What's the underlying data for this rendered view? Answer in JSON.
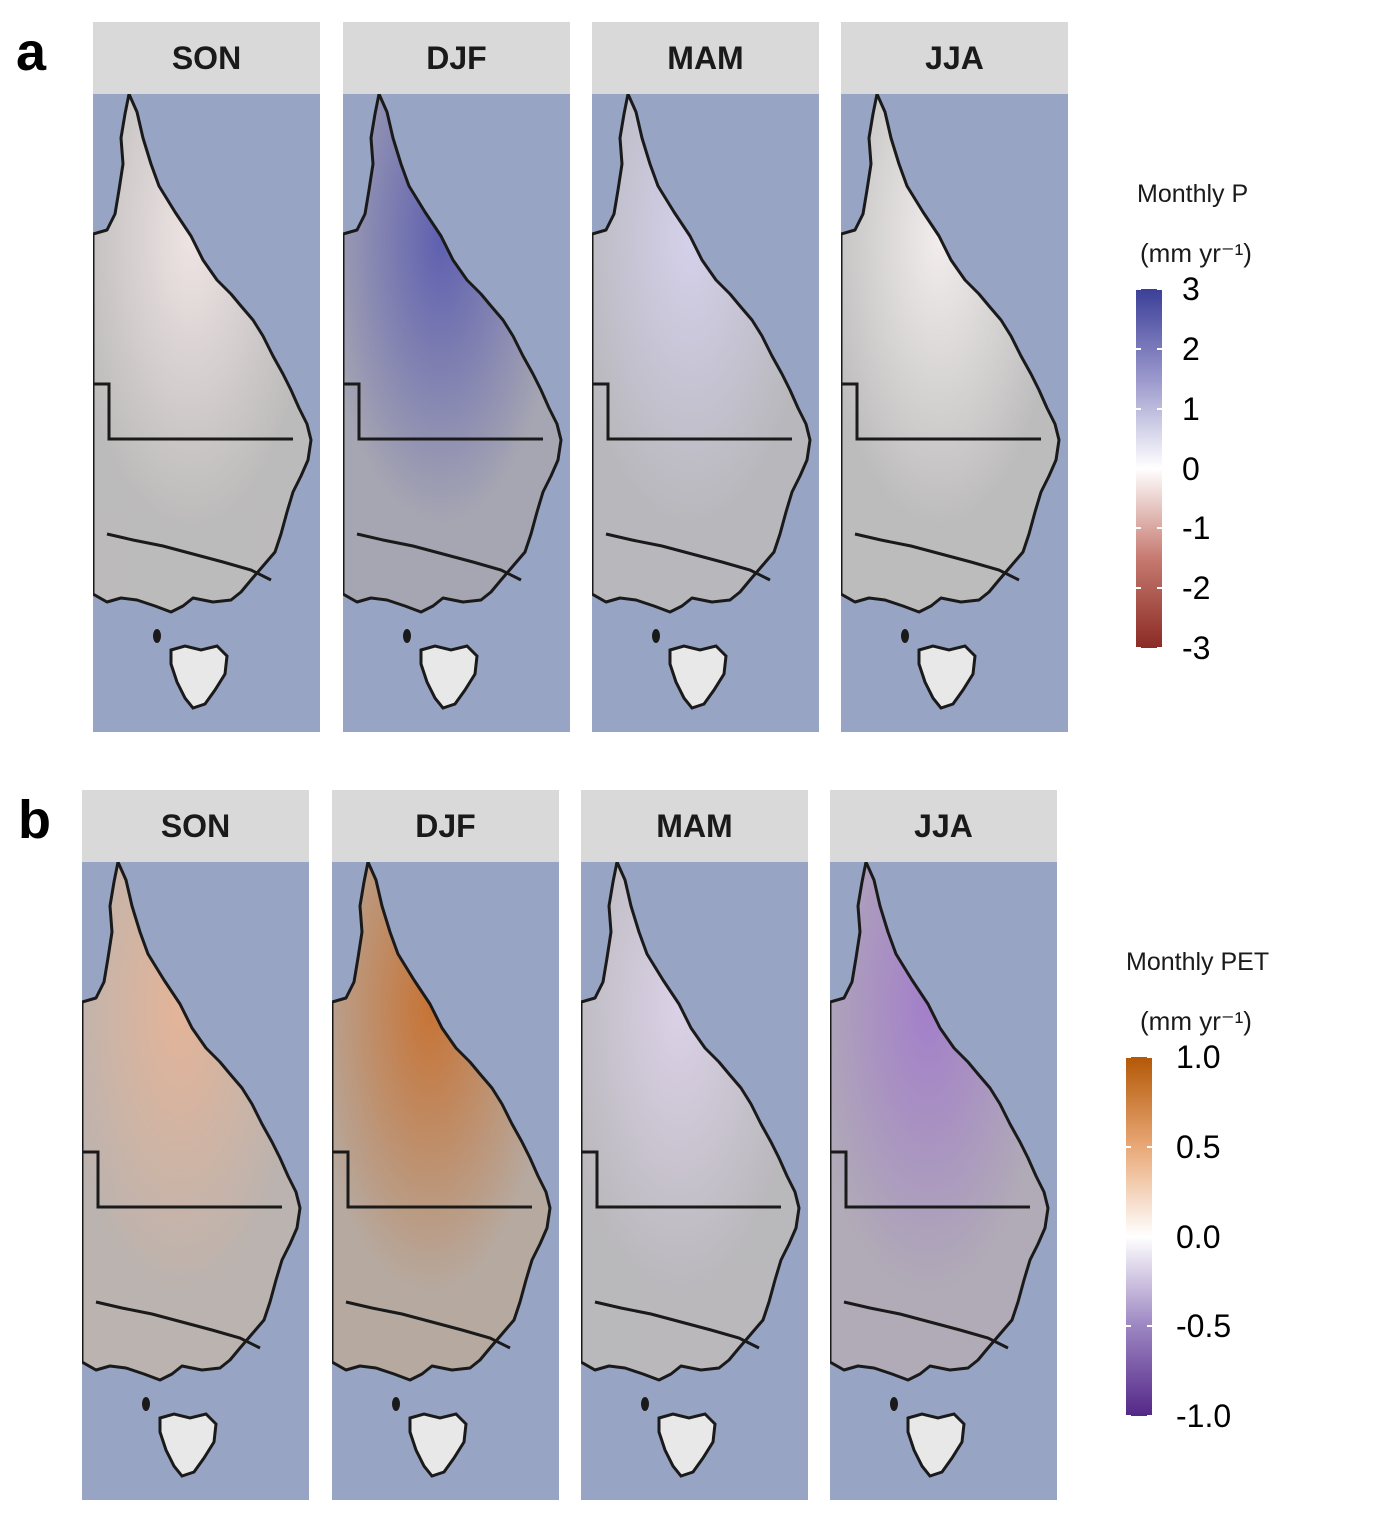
{
  "panels": [
    {
      "letter": "a",
      "seasons": [
        "SON",
        "DJF",
        "MAM",
        "JJA"
      ],
      "season_tints": [
        "#f2e6e6",
        "#5a5bb0",
        "#d6d2ee",
        "#f6f0f0"
      ],
      "legend": {
        "title": "Monthly P",
        "unit": "(mm yr⁻¹)",
        "ticks": [
          "3",
          "2",
          "1",
          "0",
          "-1",
          "-2",
          "-3"
        ],
        "colors": [
          "#3b3f98",
          "#9a98cc",
          "#ffffff",
          "#c67a70",
          "#8b2b25"
        ],
        "range": [
          -3,
          3
        ]
      }
    },
    {
      "letter": "b",
      "seasons": [
        "SON",
        "DJF",
        "MAM",
        "JJA"
      ],
      "season_tints": [
        "#e7b497",
        "#c8702e",
        "#ddd3ea",
        "#a27ccb"
      ],
      "legend": {
        "title": "Monthly PET",
        "unit": "(mm yr⁻¹)",
        "ticks": [
          "1.0",
          "0.5",
          "0.0",
          "-0.5",
          "-1.0"
        ],
        "colors": [
          "#b35806",
          "#e9a877",
          "#ffffff",
          "#9c86c2",
          "#542788"
        ],
        "range": [
          -1,
          1
        ]
      }
    }
  ],
  "map_colors": {
    "ocean": "#98a4c4",
    "land": "#b3b3b3",
    "coast": "#1a1a1a"
  }
}
